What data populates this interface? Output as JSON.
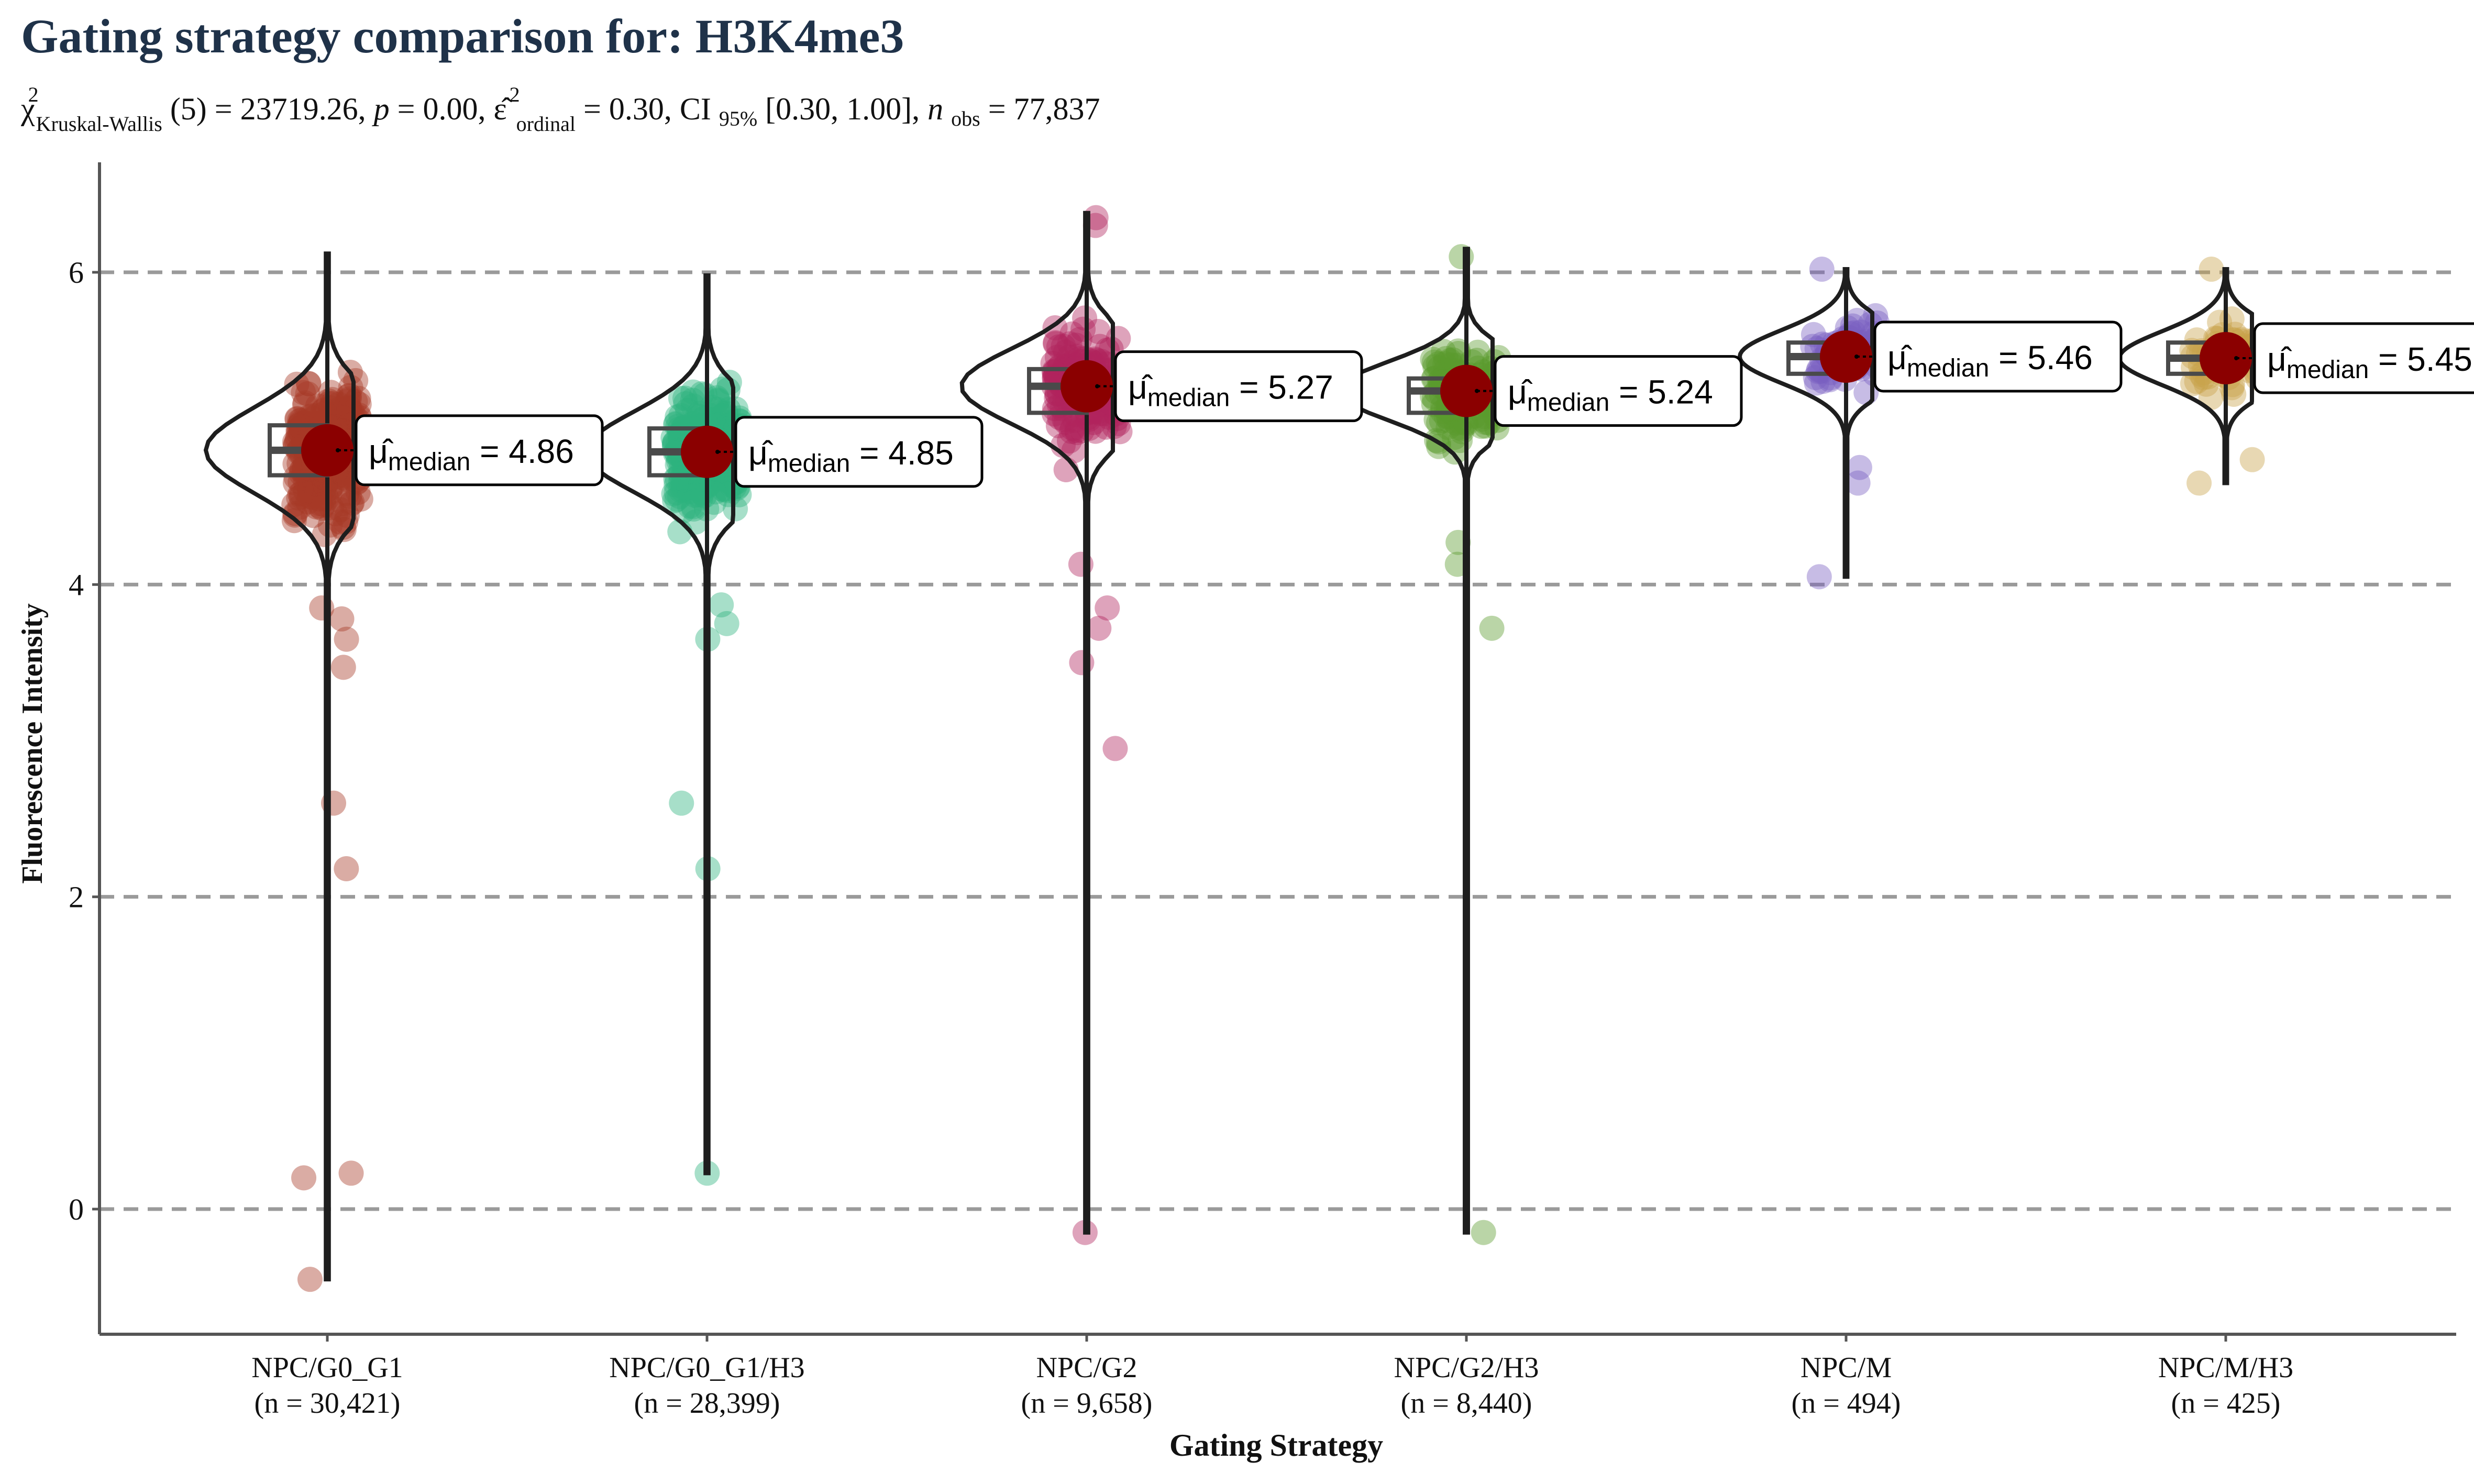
{
  "chart_data": {
    "type": "violin",
    "title": "Gating strategy comparison for: H3K4me3",
    "subtitle": {
      "chi_symbol": "χ",
      "chi_sup": "2",
      "chi_sub": "Kruskal-Wallis",
      "df": "(5) = 23719.26, ",
      "p_label": "p",
      "p_value": " = 0.00, ",
      "eps_symbol": "ε̂",
      "eps_sup": "2",
      "eps_sub": "ordinal",
      "eps_value": " = 0.30, CI",
      "ci_sub": "95%",
      "ci_value": " [0.30, 1.00], ",
      "n_label": "n",
      "n_sub": "obs",
      "n_value": " = 77,837"
    },
    "xlabel": "Gating Strategy",
    "ylabel": "Fluorescence Intensity",
    "ylim": [
      -0.8,
      6.7
    ],
    "yticks": [
      0,
      2,
      4,
      6
    ],
    "ytick_labels": [
      "0",
      "2",
      "4",
      "6"
    ],
    "grid": "dashed horizontal at y ticks",
    "median_label_prefix": "μ̂",
    "median_label_sub": "median",
    "groups": [
      {
        "name": "NPC/G0_G1",
        "n_label": "(n = 30,421)",
        "color": "#A63A26",
        "median": 4.86,
        "median_label": " = 4.86",
        "q1": 4.7,
        "q3": 5.02,
        "min": -0.45,
        "max": 6.12,
        "violin_half_width": 0.32,
        "outliers": [
          3.47,
          2.6,
          2.18,
          0.23,
          0.2,
          -0.45,
          3.65,
          3.78,
          3.85
        ]
      },
      {
        "name": "NPC/G0_G1/H3",
        "n_label": "(n = 28,399)",
        "color": "#2DB37E",
        "median": 4.85,
        "median_label": " = 4.85",
        "q1": 4.7,
        "q3": 5.0,
        "min": 0.23,
        "max": 5.98,
        "violin_half_width": 0.32,
        "outliers": [
          3.65,
          3.75,
          3.87,
          2.6,
          2.18,
          0.23
        ]
      },
      {
        "name": "NPC/G2",
        "n_label": "(n = 9,658)",
        "color": "#B0245E",
        "median": 5.27,
        "median_label": " = 5.27",
        "q1": 5.1,
        "q3": 5.38,
        "min": -0.15,
        "max": 6.38,
        "violin_half_width": 0.33,
        "outliers": [
          3.5,
          3.72,
          3.85,
          2.95,
          4.13,
          -0.15,
          6.3,
          6.35
        ]
      },
      {
        "name": "NPC/G2/H3",
        "n_label": "(n = 8,440)",
        "color": "#5A9A2E",
        "median": 5.24,
        "median_label": " = 5.24",
        "q1": 5.1,
        "q3": 5.32,
        "min": -0.15,
        "max": 6.15,
        "violin_half_width": 0.34,
        "outliers": [
          3.72,
          4.13,
          4.27,
          -0.15,
          6.1
        ]
      },
      {
        "name": "NPC/M",
        "n_label": "(n = 494)",
        "color": "#7A5FC0",
        "median": 5.46,
        "median_label": " = 5.46",
        "q1": 5.35,
        "q3": 5.55,
        "min": 4.05,
        "max": 6.02,
        "violin_half_width": 0.28,
        "outliers": [
          4.05,
          4.65,
          4.75,
          6.02
        ]
      },
      {
        "name": "NPC/M/H3",
        "n_label": "(n = 425)",
        "color": "#C9A24A",
        "median": 5.45,
        "median_label": " = 5.45",
        "q1": 5.35,
        "q3": 5.55,
        "min": 4.65,
        "max": 6.02,
        "violin_half_width": 0.28,
        "outliers": [
          4.65,
          4.8,
          6.02
        ]
      }
    ],
    "median_marker_color": "#8B0000"
  }
}
